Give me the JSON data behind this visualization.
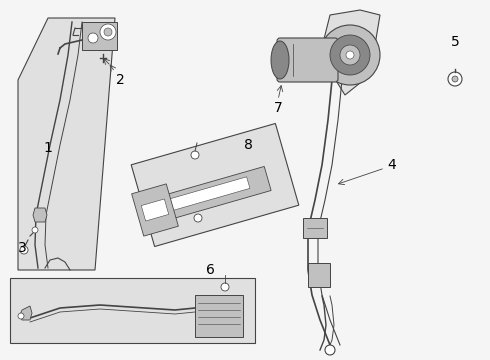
{
  "bg_color": "#f5f5f5",
  "line_color": "#444444",
  "fill_gray": "#e0e0e0",
  "white": "#ffffff",
  "mid_gray": "#c0c0c0",
  "dark_gray": "#888888"
}
